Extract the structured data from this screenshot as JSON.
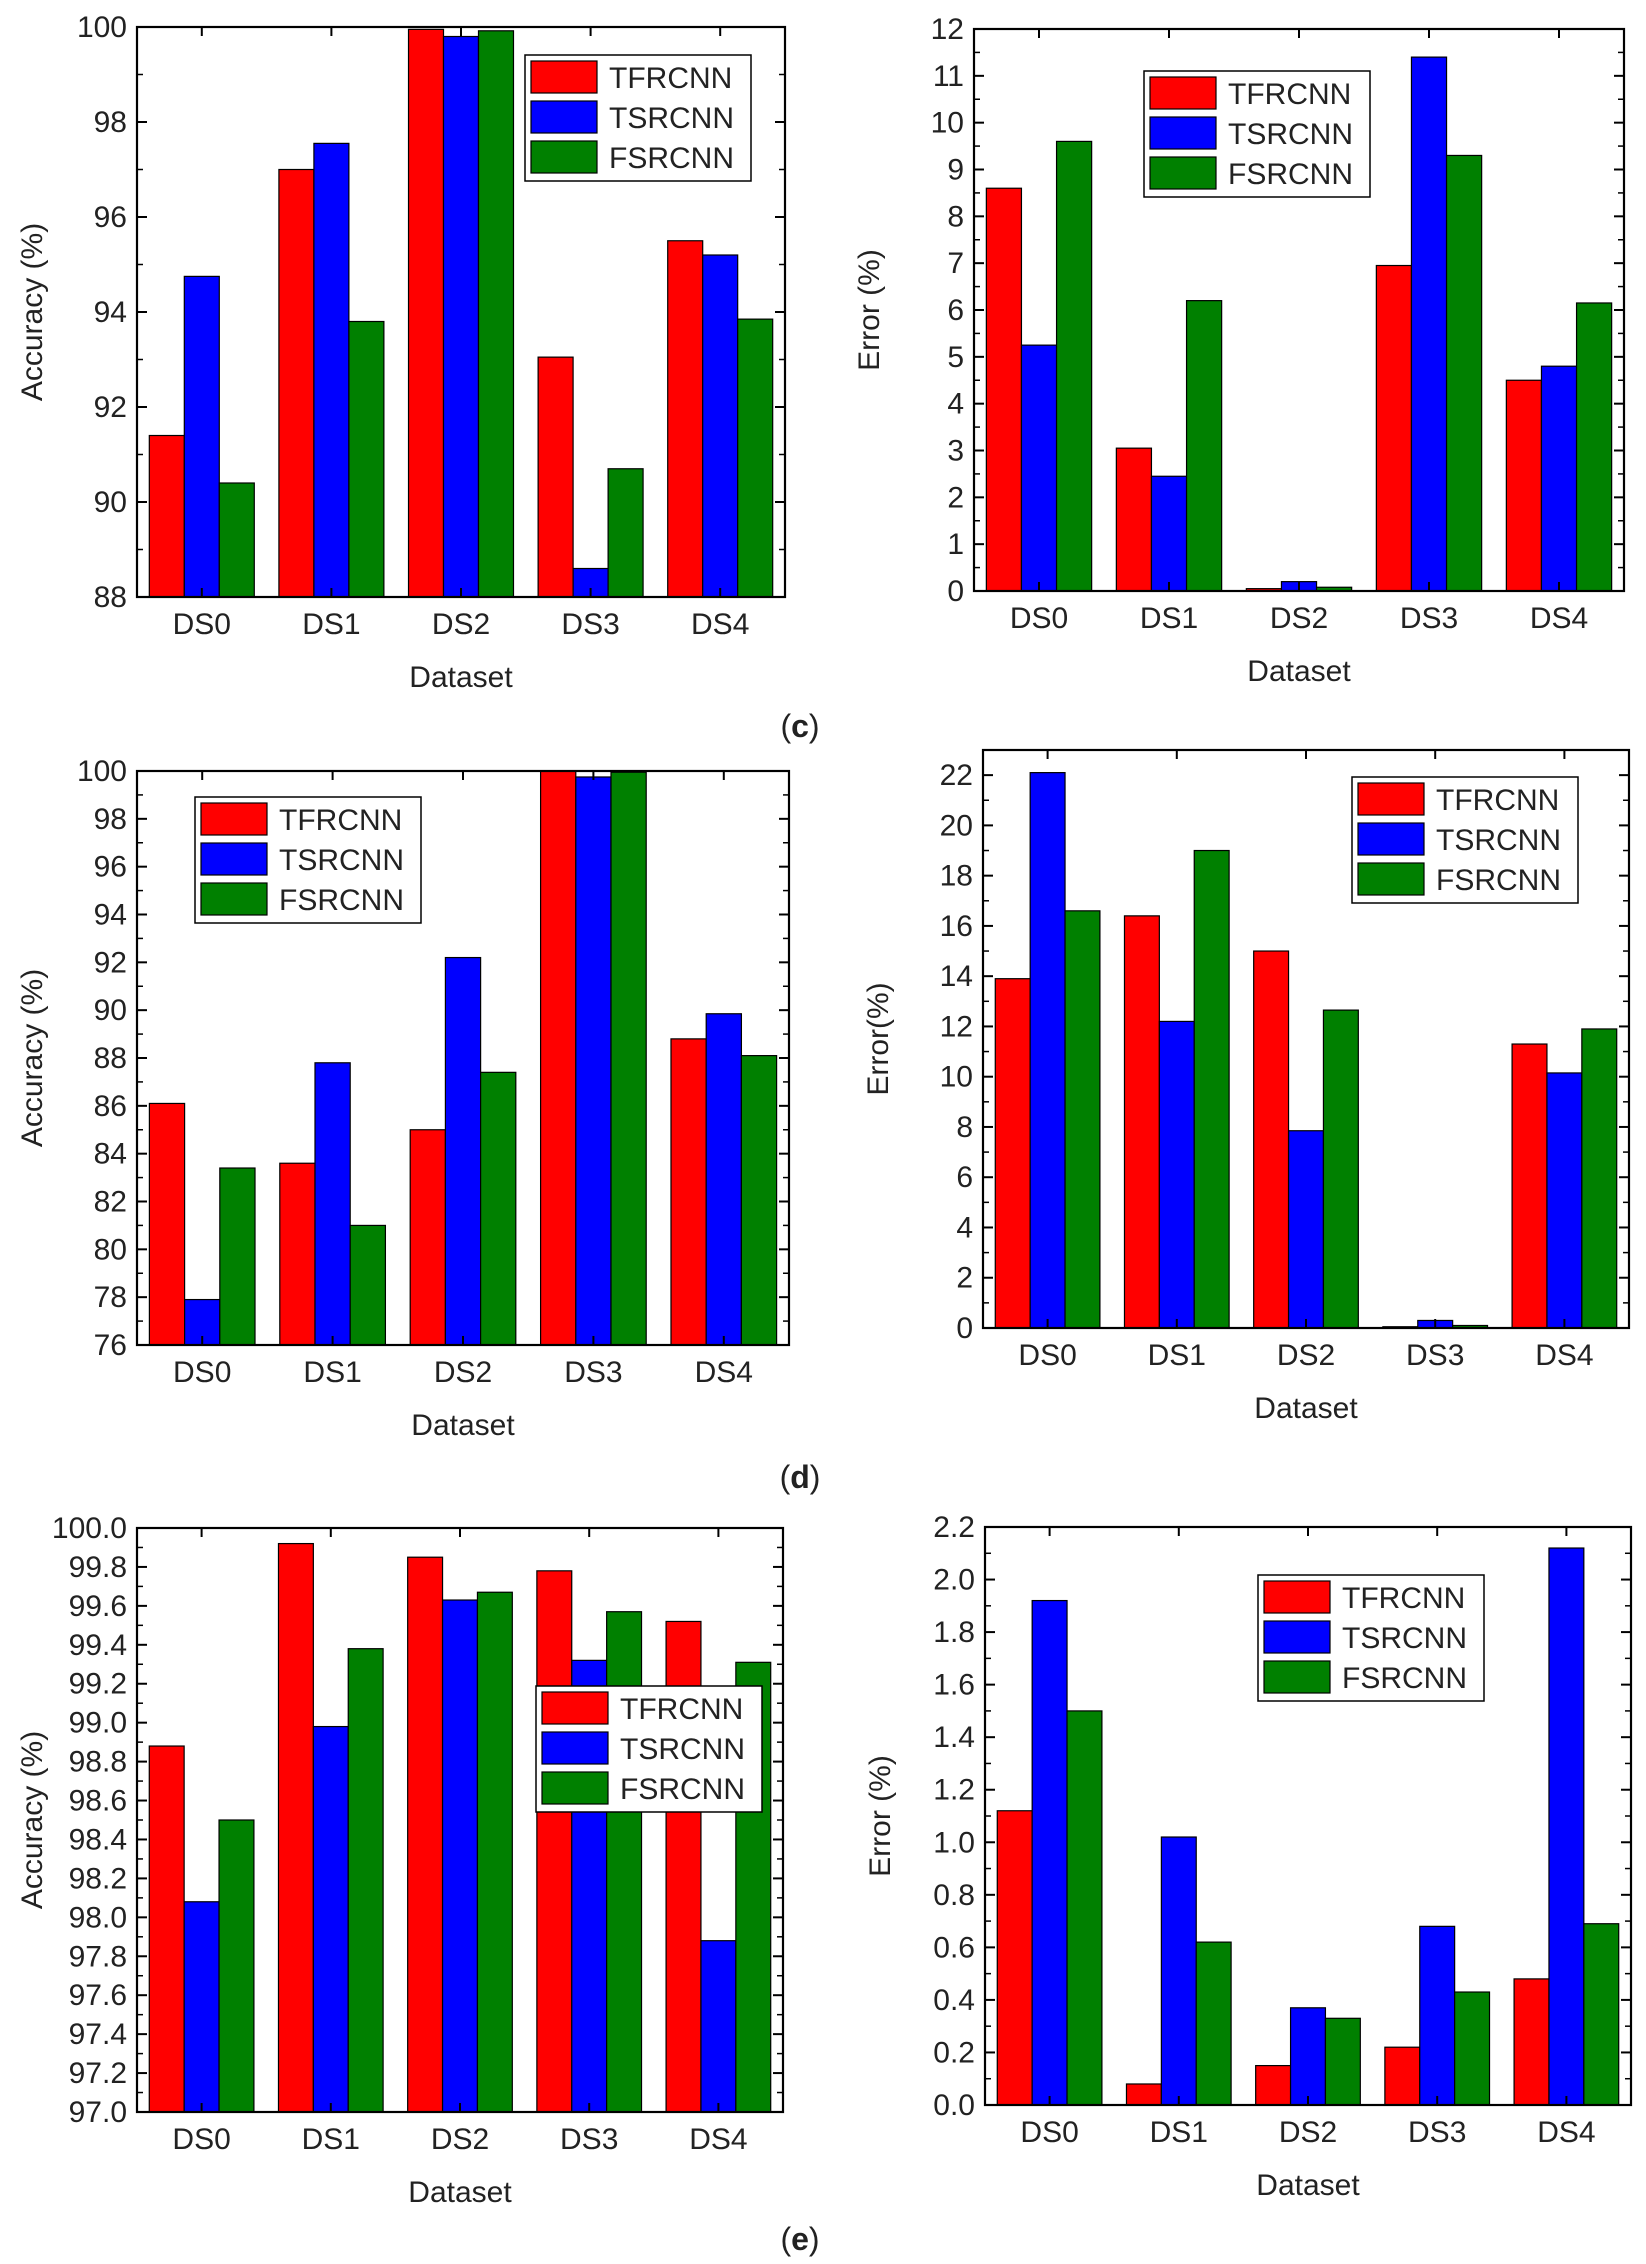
{
  "series_names": [
    "TFRCNN",
    "TSRCNN",
    "FSRCNN"
  ],
  "colors": {
    "TFRCNN": "#ff0000",
    "TSRCNN": "#0000ff",
    "FSRCNN": "#008000"
  },
  "panel_labels": [
    {
      "open": "(",
      "letter": "c",
      "close": ")"
    },
    {
      "open": "(",
      "letter": "d",
      "close": ")"
    },
    {
      "open": "(",
      "letter": "e",
      "close": ")"
    }
  ],
  "chart_data": [
    {
      "type": "bar",
      "xlabel": "Dataset",
      "ylabel": "Accuracy (%)",
      "categories": [
        "DS0",
        "DS1",
        "DS2",
        "DS3",
        "DS4"
      ],
      "ylim": [
        88,
        100
      ],
      "yticks": [
        "88",
        "90",
        "92",
        "94",
        "96",
        "98",
        "100"
      ],
      "tick_step": 2,
      "legend_position": "top-right",
      "series": [
        {
          "name": "TFRCNN",
          "values": [
            91.4,
            97.0,
            99.95,
            93.05,
            95.5
          ]
        },
        {
          "name": "TSRCNN",
          "values": [
            94.75,
            97.55,
            99.8,
            88.6,
            95.2
          ]
        },
        {
          "name": "FSRCNN",
          "values": [
            90.4,
            93.8,
            99.92,
            90.7,
            93.85
          ]
        }
      ]
    },
    {
      "type": "bar",
      "xlabel": "Dataset",
      "ylabel": "Error (%)",
      "categories": [
        "DS0",
        "DS1",
        "DS2",
        "DS3",
        "DS4"
      ],
      "ylim": [
        0,
        12
      ],
      "yticks": [
        "0",
        "1",
        "2",
        "3",
        "4",
        "5",
        "6",
        "7",
        "8",
        "9",
        "10",
        "11",
        "12"
      ],
      "tick_step": 1,
      "legend_position": "top-center",
      "series": [
        {
          "name": "TFRCNN",
          "values": [
            8.6,
            3.05,
            0.05,
            6.95,
            4.5
          ]
        },
        {
          "name": "TSRCNN",
          "values": [
            5.25,
            2.45,
            0.2,
            11.4,
            4.8
          ]
        },
        {
          "name": "FSRCNN",
          "values": [
            9.6,
            6.2,
            0.08,
            9.3,
            6.15
          ]
        }
      ]
    },
    {
      "type": "bar",
      "xlabel": "Dataset",
      "ylabel": "Accuracy (%)",
      "categories": [
        "DS0",
        "DS1",
        "DS2",
        "DS3",
        "DS4"
      ],
      "ylim": [
        76,
        100
      ],
      "yticks": [
        "76",
        "78",
        "80",
        "82",
        "84",
        "86",
        "88",
        "90",
        "92",
        "94",
        "96",
        "98",
        "100"
      ],
      "tick_step": 2,
      "legend_position": "top-left",
      "series": [
        {
          "name": "TFRCNN",
          "values": [
            86.1,
            83.6,
            85.0,
            100.0,
            88.8
          ]
        },
        {
          "name": "TSRCNN",
          "values": [
            77.9,
            87.8,
            92.2,
            99.75,
            89.85
          ]
        },
        {
          "name": "FSRCNN",
          "values": [
            83.4,
            81.0,
            87.4,
            99.95,
            88.1
          ]
        }
      ]
    },
    {
      "type": "bar",
      "xlabel": "Dataset",
      "ylabel": "Error(%)",
      "categories": [
        "DS0",
        "DS1",
        "DS2",
        "DS3",
        "DS4"
      ],
      "ylim": [
        0,
        23
      ],
      "yticks": [
        "0",
        "2",
        "4",
        "6",
        "8",
        "10",
        "12",
        "14",
        "16",
        "18",
        "20",
        "22"
      ],
      "tick_step": 2,
      "legend_position": "top-right",
      "series": [
        {
          "name": "TFRCNN",
          "values": [
            13.9,
            16.4,
            15.0,
            0.05,
            11.3
          ]
        },
        {
          "name": "TSRCNN",
          "values": [
            22.1,
            12.2,
            7.85,
            0.3,
            10.15
          ]
        },
        {
          "name": "FSRCNN",
          "values": [
            16.6,
            19.0,
            12.65,
            0.1,
            11.9
          ]
        }
      ]
    },
    {
      "type": "bar",
      "xlabel": "Dataset",
      "ylabel": "Accuracy (%)",
      "categories": [
        "DS0",
        "DS1",
        "DS2",
        "DS3",
        "DS4"
      ],
      "ylim": [
        97.0,
        100.0
      ],
      "yticks": [
        "97.0",
        "97.2",
        "97.4",
        "97.6",
        "97.8",
        "98.0",
        "98.2",
        "98.4",
        "98.6",
        "98.8",
        "99.0",
        "99.2",
        "99.4",
        "99.6",
        "99.8",
        "100.0"
      ],
      "tick_step": 0.2,
      "legend_position": "center-right",
      "series": [
        {
          "name": "TFRCNN",
          "values": [
            98.88,
            99.92,
            99.85,
            99.78,
            99.52
          ]
        },
        {
          "name": "TSRCNN",
          "values": [
            98.08,
            98.98,
            99.63,
            99.32,
            97.88
          ]
        },
        {
          "name": "FSRCNN",
          "values": [
            98.5,
            99.38,
            99.67,
            99.57,
            99.31
          ]
        }
      ]
    },
    {
      "type": "bar",
      "xlabel": "Dataset",
      "ylabel": "Error (%)",
      "categories": [
        "DS0",
        "DS1",
        "DS2",
        "DS3",
        "DS4"
      ],
      "ylim": [
        0,
        2.2
      ],
      "yticks": [
        "0.0",
        "0.2",
        "0.4",
        "0.6",
        "0.8",
        "1.0",
        "1.2",
        "1.4",
        "1.6",
        "1.8",
        "2.0",
        "2.2"
      ],
      "tick_step": 0.2,
      "legend_position": "top-center",
      "series": [
        {
          "name": "TFRCNN",
          "values": [
            1.12,
            0.08,
            0.15,
            0.22,
            0.48
          ]
        },
        {
          "name": "TSRCNN",
          "values": [
            1.92,
            1.02,
            0.37,
            0.68,
            2.12
          ]
        },
        {
          "name": "FSRCNN",
          "values": [
            1.5,
            0.62,
            0.33,
            0.43,
            0.69
          ]
        }
      ]
    }
  ]
}
